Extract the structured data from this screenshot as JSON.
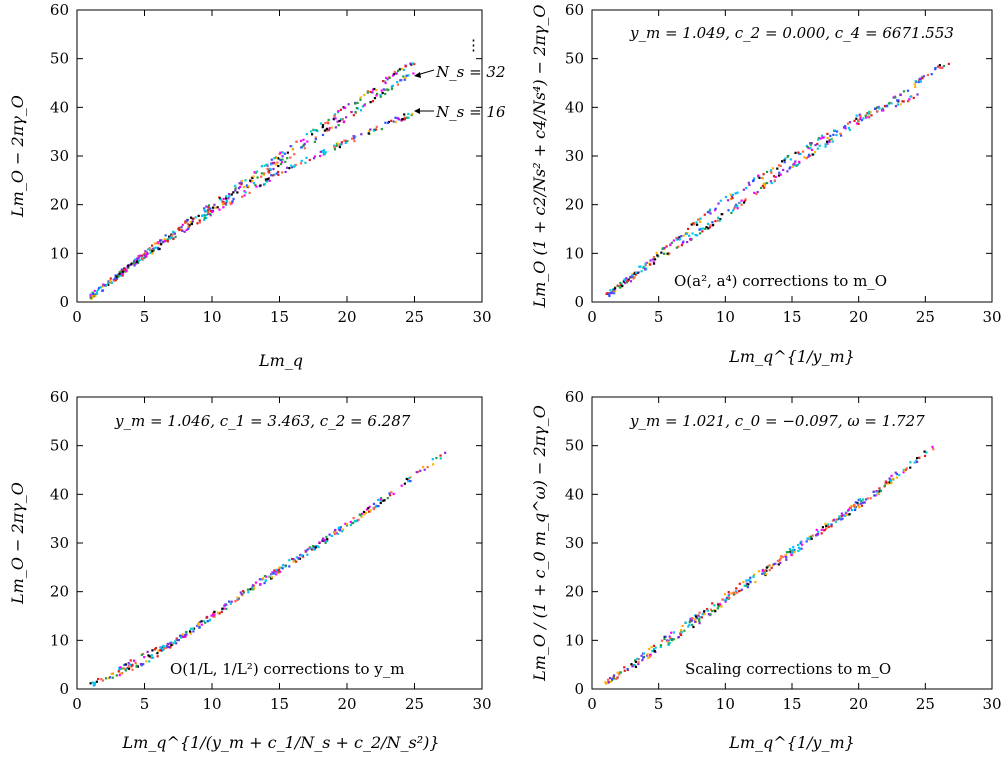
{
  "chart_data": [
    {
      "type": "scatter",
      "xlabel": "Lm_q",
      "ylabel": "Lm_O − 2πγ_O",
      "xlim": [
        0,
        30
      ],
      "ylim": [
        0,
        60
      ],
      "xticks": [
        0,
        5,
        10,
        15,
        20,
        25,
        30
      ],
      "yticks": [
        0,
        10,
        20,
        30,
        40,
        50,
        60
      ],
      "annotations": [
        "N_s = 32",
        "N_s = 16",
        "⋮"
      ],
      "series": [
        {
          "x": [
            1,
            5,
            10,
            15,
            20,
            25
          ],
          "y": [
            1,
            10,
            20,
            30,
            40,
            49.5
          ]
        },
        {
          "x": [
            1,
            5,
            10,
            15,
            20,
            25
          ],
          "y": [
            1,
            9.8,
            19.2,
            28.5,
            38,
            47.5
          ]
        },
        {
          "x": [
            1,
            5,
            10,
            15,
            20,
            25
          ],
          "y": [
            1,
            9.5,
            18.5,
            26.5,
            33,
            39
          ]
        }
      ]
    },
    {
      "type": "scatter",
      "xlabel": "Lm_q^{1/y_m}",
      "ylabel": "Lm_O (1 + c2/Ns² + c4/Ns⁴) − 2πγ_O",
      "xlim": [
        0,
        30
      ],
      "ylim": [
        0,
        60
      ],
      "xticks": [
        0,
        5,
        10,
        15,
        20,
        25,
        30
      ],
      "yticks": [
        0,
        10,
        20,
        30,
        40,
        50,
        60
      ],
      "annotations": [
        "y_m = 1.049, c_2 = 0.000, c_4 = 6671.553",
        "O(a², a⁴) corrections to m_O"
      ],
      "series": [
        {
          "x": [
            1,
            5,
            10,
            15,
            20,
            26.8
          ],
          "y": [
            1,
            9,
            18,
            28,
            37,
            49.5
          ]
        },
        {
          "x": [
            1,
            5,
            10,
            15,
            20,
            24.5
          ],
          "y": [
            1,
            10,
            21,
            30,
            38,
            42.5
          ]
        }
      ]
    },
    {
      "type": "scatter",
      "xlabel": "Lm_q^{1/(y_m + c_1/N_s + c_2/N_s²)}",
      "ylabel": "Lm_O − 2πγ_O",
      "xlim": [
        0,
        30
      ],
      "ylim": [
        0,
        60
      ],
      "xticks": [
        0,
        5,
        10,
        15,
        20,
        25,
        30
      ],
      "yticks": [
        0,
        10,
        20,
        30,
        40,
        50,
        60
      ],
      "annotations": [
        "y_m = 1.046, c_1 = 3.463, c_2 = 6.287",
        "O(1/L, 1/L²) corrections to y_m"
      ],
      "series": [
        {
          "x": [
            1,
            5,
            10,
            15,
            20,
            27.7
          ],
          "y": [
            1,
            5.5,
            15,
            24.5,
            33.5,
            49.5
          ]
        },
        {
          "x": [
            3,
            8,
            13,
            18,
            22.5
          ],
          "y": [
            4,
            11,
            21,
            30,
            38.5
          ]
        }
      ]
    },
    {
      "type": "scatter",
      "xlabel": "Lm_q^{1/y_m}",
      "ylabel": "Lm_O / (1 + c_0 m_q^ω) − 2πγ_O",
      "xlim": [
        0,
        30
      ],
      "ylim": [
        0,
        60
      ],
      "xticks": [
        0,
        5,
        10,
        15,
        20,
        25,
        30
      ],
      "yticks": [
        0,
        10,
        20,
        30,
        40,
        50,
        60
      ],
      "annotations": [
        "y_m = 1.021, c_0 = −0.097, ω = 1.727",
        "Scaling corrections to m_O"
      ],
      "series": [
        {
          "x": [
            1,
            5,
            10,
            15,
            20,
            25.7
          ],
          "y": [
            1,
            9.3,
            19,
            28.5,
            38.3,
            49.8
          ]
        },
        {
          "x": [
            3,
            8,
            13,
            18,
            22.5
          ],
          "y": [
            4.5,
            14,
            24,
            34,
            42.5
          ]
        }
      ]
    }
  ],
  "colors": [
    "#000000",
    "#e41a1c",
    "#ff00ff",
    "#00bfff",
    "#1f9e3a",
    "#ffb000",
    "#8a2be2",
    "#00ced1",
    "#ff6347",
    "#2f4fff"
  ]
}
